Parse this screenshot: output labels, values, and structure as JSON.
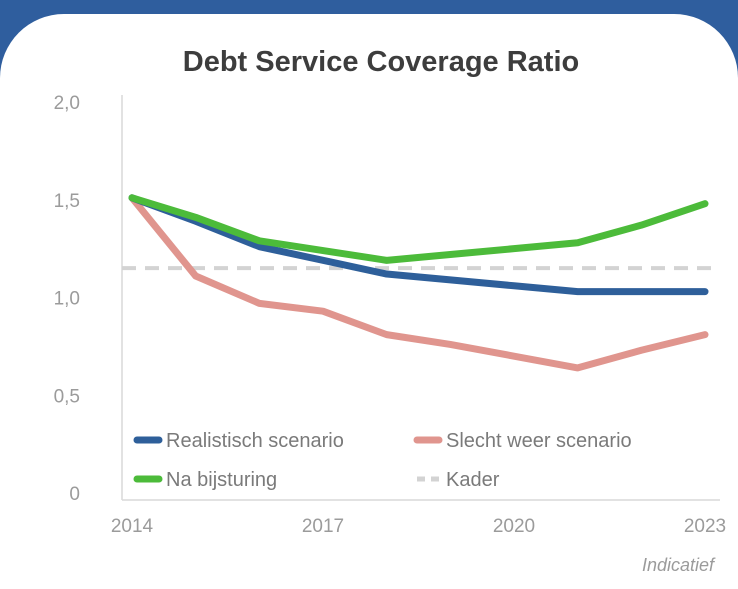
{
  "chart_data": {
    "type": "line",
    "title": "Debt Service Coverage Ratio",
    "x": [
      2014,
      2015,
      2016,
      2017,
      2018,
      2019,
      2020,
      2021,
      2022,
      2023
    ],
    "x_ticks": [
      "2014",
      "2017",
      "2020",
      "2023"
    ],
    "y_ticks": [
      "0",
      "0,5",
      "1,0",
      "1,5",
      "2,0"
    ],
    "ylim": [
      0,
      2.0
    ],
    "xlim": [
      2014,
      2023
    ],
    "grid": false,
    "legend_position": "bottom-inside",
    "series": [
      {
        "name": "Realistisch scenario",
        "color": "#2e5f9a",
        "style": "solid",
        "values": [
          1.51,
          1.39,
          1.26,
          1.19,
          1.12,
          1.09,
          1.06,
          1.03,
          1.03,
          1.03
        ]
      },
      {
        "name": "Slecht weer scenario",
        "color": "#e0958e",
        "style": "solid",
        "values": [
          1.51,
          1.11,
          0.97,
          0.93,
          0.81,
          0.76,
          0.7,
          0.64,
          0.73,
          0.81
        ]
      },
      {
        "name": "Na bijsturing",
        "color": "#4cbb3a",
        "style": "solid",
        "values": [
          1.51,
          1.41,
          1.29,
          1.24,
          1.19,
          1.22,
          1.25,
          1.28,
          1.37,
          1.48
        ]
      },
      {
        "name": "Kader",
        "color": "#d3d3d3",
        "style": "dashed",
        "values": [
          1.15,
          1.15,
          1.15,
          1.15,
          1.15,
          1.15,
          1.15,
          1.15,
          1.15,
          1.15
        ]
      }
    ],
    "annotation": "Indicatief"
  }
}
